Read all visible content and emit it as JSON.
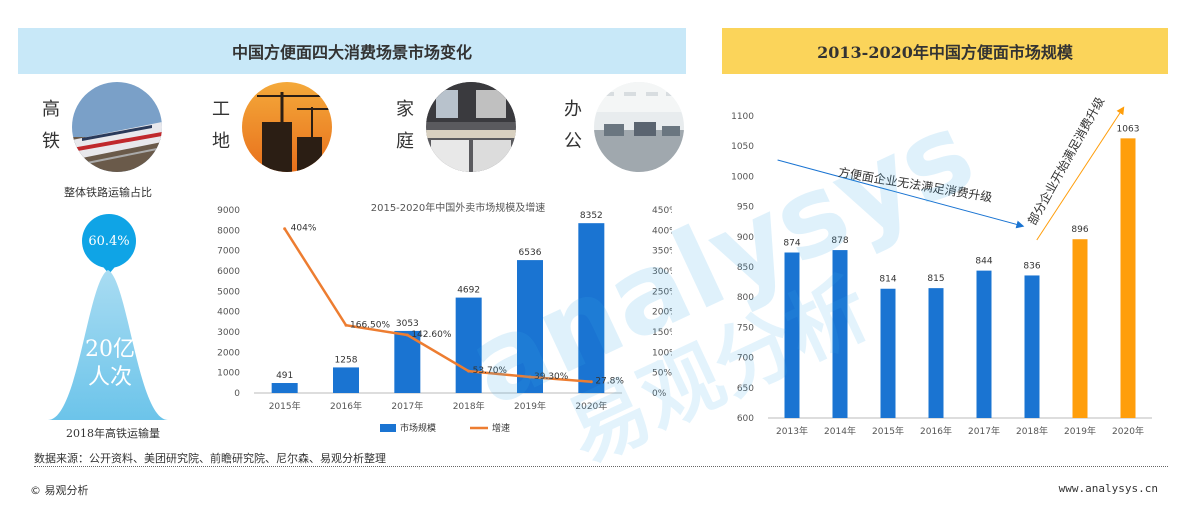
{
  "left_panel": {
    "title": "中国方便面四大消费场景市场变化",
    "scenes": [
      {
        "label_top": "高",
        "label_bottom": "铁",
        "icon": "train-photo"
      },
      {
        "label_top": "工",
        "label_bottom": "地",
        "icon": "construction-photo"
      },
      {
        "label_top": "家",
        "label_bottom": "庭",
        "icon": "kitchen-photo"
      },
      {
        "label_top": "办",
        "label_bottom": "公",
        "icon": "office-photo"
      }
    ],
    "rail_share_label": "整体铁路运输占比",
    "rail_share_value": "60.4%",
    "passenger_value_line1": "20亿",
    "passenger_value_line2": "人次",
    "passenger_caption": "2018年高铁运输量"
  },
  "right_panel": {
    "title": "2013-2020年中国方便面市场规模"
  },
  "chart_data": [
    {
      "type": "bar",
      "title": "2015-2020年中国外卖市场规模及增速",
      "categories": [
        "2015年",
        "2016年",
        "2017年",
        "2018年",
        "2019年",
        "2020年"
      ],
      "y_ticks": [
        "0",
        "1000",
        "2000",
        "3000",
        "4000",
        "5000",
        "6000",
        "7000",
        "8000",
        "9000"
      ],
      "y2_ticks": [
        "0%",
        "50%",
        "100%",
        "150%",
        "200%",
        "250%",
        "300%",
        "350%",
        "400%",
        "450%"
      ],
      "ylim": [
        0,
        9000
      ],
      "y2lim": [
        0,
        450
      ],
      "series": [
        {
          "name": "市场规模",
          "type": "bar",
          "color": "#1a74d2",
          "values": [
            491,
            1258,
            3053,
            4692,
            6536,
            8352
          ],
          "labels": [
            "491",
            "1258",
            "3053",
            "4692",
            "6536",
            "8352"
          ]
        },
        {
          "name": "增速",
          "type": "line",
          "color": "#ed7d31",
          "values": [
            404,
            166.5,
            142.6,
            53.7,
            39.3,
            27.8
          ],
          "labels": [
            "404%",
            "166.50%",
            "142.60%",
            "53.70%",
            "39.30%",
            "27.8%"
          ]
        }
      ]
    },
    {
      "type": "bar",
      "title": "",
      "categories": [
        "2013年",
        "2014年",
        "2015年",
        "2016年",
        "2017年",
        "2018年",
        "2019年",
        "2020年"
      ],
      "values": [
        874,
        878,
        814,
        815,
        844,
        836,
        896,
        1063
      ],
      "colors": [
        "#1a74d2",
        "#1a74d2",
        "#1a74d2",
        "#1a74d2",
        "#1a74d2",
        "#1a74d2",
        "#ff9e0b",
        "#ff9e0b"
      ],
      "y_ticks": [
        "600",
        "650",
        "700",
        "750",
        "800",
        "850",
        "900",
        "950",
        "1000",
        "1050",
        "1100"
      ],
      "ylim": [
        600,
        1100
      ],
      "annotations": [
        "方便面企业无法满足消费升级",
        "部分企业开始满足消费升级"
      ]
    }
  ],
  "footer": {
    "source": "数据来源：公开资料、美团研究院、前瞻研究院、尼尔森、易观分析整理",
    "copyright": "© 易观分析",
    "website": "www.analysys.cn"
  },
  "watermark": {
    "text_en": "analysys",
    "text_cn": "易观分析"
  }
}
